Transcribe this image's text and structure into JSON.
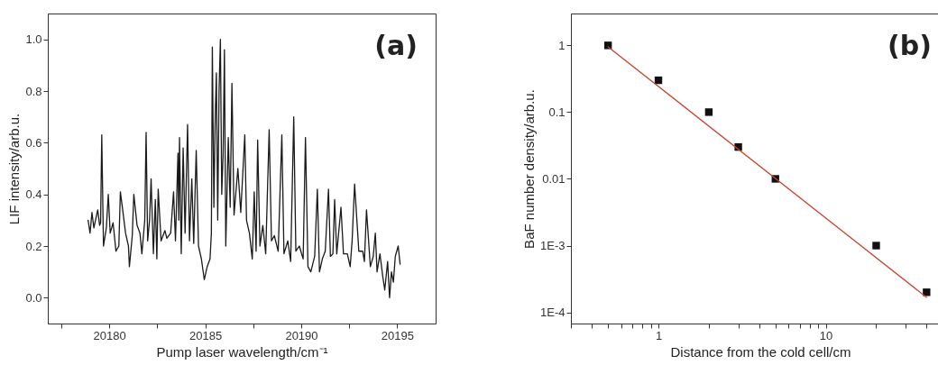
{
  "chart_data": [
    {
      "type": "line",
      "xlabel": "Pump laser wavelength/cm⁻¹",
      "ylabel": "LIF intensity/arb.u.",
      "annotations": [
        "(a)"
      ],
      "color": "#1a1a1a",
      "grid": false,
      "line_style": "solid",
      "xlim": [
        20176.8,
        20197
      ],
      "xticks": [
        {
          "value": 20177.5,
          "label": null
        },
        20180,
        {
          "value": 20182.5,
          "label": null
        },
        20185,
        {
          "value": 20187.5,
          "label": null
        },
        20190,
        {
          "value": 20192.5,
          "label": null
        },
        20195
      ],
      "ylim": [
        -0.1,
        1.1
      ],
      "yticks": [
        {
          "value": 0,
          "label": "0.0"
        },
        0.2,
        0.4,
        0.6,
        0.8,
        {
          "value": 1,
          "label": "1.0"
        }
      ],
      "x": [
        20178.9,
        20179.0,
        20179.1,
        20179.2,
        20179.4,
        20179.5,
        20179.55,
        20179.61,
        20179.7,
        20179.85,
        20179.95,
        20180.05,
        20180.2,
        20180.35,
        20180.5,
        20180.58,
        20180.7,
        20180.85,
        20181.0,
        20181.05,
        20181.2,
        20181.28,
        20181.45,
        20181.6,
        20181.7,
        20181.85,
        20181.92,
        20182.0,
        20182.1,
        20182.18,
        20182.3,
        20182.4,
        20182.48,
        20182.55,
        20182.7,
        20182.9,
        20183.0,
        20183.2,
        20183.35,
        20183.45,
        20183.58,
        20183.62,
        20183.66,
        20183.75,
        20183.85,
        20183.95,
        20184.08,
        20184.18,
        20184.3,
        20184.4,
        20184.53,
        20184.65,
        20184.8,
        20184.95,
        20185.1,
        20185.25,
        20185.32,
        20185.37,
        20185.45,
        20185.52,
        20185.58,
        20185.65,
        20185.72,
        20185.79,
        20185.86,
        20185.93,
        20186.0,
        20186.07,
        20186.2,
        20186.3,
        20186.39,
        20186.5,
        20186.7,
        20186.85,
        20187.06,
        20187.15,
        20187.3,
        20187.45,
        20187.55,
        20187.65,
        20187.73,
        20187.85,
        20188.0,
        20188.15,
        20188.33,
        20188.45,
        20188.6,
        20188.8,
        20188.99,
        20189.1,
        20189.3,
        20189.45,
        20189.61,
        20189.72,
        20189.9,
        20190.1,
        20190.22,
        20190.35,
        20190.5,
        20190.7,
        20190.84,
        20190.95,
        20191.1,
        20191.25,
        20191.42,
        20191.52,
        20191.65,
        20191.74,
        20191.85,
        20192.07,
        20192.2,
        20192.4,
        20192.55,
        20192.65,
        20192.78,
        20193.0,
        20193.2,
        20193.29,
        20193.4,
        20193.6,
        20193.75,
        20193.86,
        20193.95,
        20194.1,
        20194.25,
        20194.35,
        20194.5,
        20194.6,
        20194.7,
        20194.8,
        20194.9,
        20195.05,
        20195.15
      ],
      "values": [
        0.3,
        0.25,
        0.33,
        0.27,
        0.34,
        0.28,
        0.29,
        0.63,
        0.2,
        0.27,
        0.4,
        0.25,
        0.29,
        0.18,
        0.2,
        0.41,
        0.34,
        0.25,
        0.2,
        0.12,
        0.24,
        0.4,
        0.28,
        0.25,
        0.17,
        0.3,
        0.64,
        0.22,
        0.3,
        0.46,
        0.17,
        0.38,
        0.15,
        0.42,
        0.22,
        0.26,
        0.23,
        0.25,
        0.41,
        0.22,
        0.56,
        0.3,
        0.62,
        0.17,
        0.58,
        0.25,
        0.67,
        0.22,
        0.46,
        0.21,
        0.57,
        0.2,
        0.15,
        0.07,
        0.12,
        0.15,
        0.25,
        0.97,
        0.35,
        0.7,
        0.87,
        0.3,
        0.8,
        1.0,
        0.4,
        0.55,
        0.96,
        0.2,
        0.62,
        0.35,
        0.83,
        0.32,
        0.5,
        0.33,
        0.63,
        0.3,
        0.25,
        0.15,
        0.41,
        0.18,
        0.61,
        0.2,
        0.28,
        0.17,
        0.65,
        0.22,
        0.24,
        0.18,
        0.63,
        0.17,
        0.22,
        0.14,
        0.7,
        0.18,
        0.2,
        0.15,
        0.62,
        0.12,
        0.1,
        0.16,
        0.42,
        0.1,
        0.15,
        0.18,
        0.42,
        0.16,
        0.17,
        0.38,
        0.17,
        0.35,
        0.17,
        0.17,
        0.12,
        0.22,
        0.44,
        0.18,
        0.18,
        0.14,
        0.34,
        0.12,
        0.16,
        0.25,
        0.1,
        0.17,
        0.08,
        0.03,
        0.14,
        0.0,
        0.1,
        0.06,
        0.16,
        0.2,
        0.13
      ]
    },
    {
      "type": "scatter",
      "xlabel": "Distance from the cold cell/cm",
      "ylabel": "BaF number density/arb.u.",
      "annotations": [
        "(b)"
      ],
      "grid": false,
      "log": "xy",
      "xlim": [
        0.3,
        55
      ],
      "xticks": [
        {
          "value": 0.3,
          "label": null
        },
        {
          "value": 0.4,
          "label": null
        },
        {
          "value": 0.5,
          "label": null
        },
        {
          "value": 0.6,
          "label": null
        },
        {
          "value": 0.7,
          "label": null
        },
        {
          "value": 0.8,
          "label": null
        },
        {
          "value": 0.9,
          "label": null
        },
        1,
        {
          "value": 2,
          "label": null
        },
        {
          "value": 3,
          "label": null
        },
        {
          "value": 4,
          "label": null
        },
        {
          "value": 5,
          "label": null
        },
        {
          "value": 6,
          "label": null
        },
        {
          "value": 7,
          "label": null
        },
        {
          "value": 8,
          "label": null
        },
        {
          "value": 9,
          "label": null
        },
        10,
        {
          "value": 20,
          "label": null
        },
        {
          "value": 30,
          "label": null
        },
        {
          "value": 40,
          "label": null
        },
        {
          "value": 50,
          "label": null
        }
      ],
      "ylim": [
        6.8e-05,
        3
      ],
      "yticks": [
        {
          "value": 0.0001,
          "label": "1E-4"
        },
        {
          "value": 0.001,
          "label": "1E-3"
        },
        0.01,
        0.1,
        1
      ],
      "series": [
        {
          "marker": "square",
          "color": "#111111",
          "x": [
            0.5,
            1,
            2,
            3,
            5,
            20,
            40
          ],
          "values": [
            1,
            0.3,
            0.1,
            0.03,
            0.01,
            0.001,
            0.0002
          ]
        },
        {
          "type": "line",
          "line_style": "solid",
          "color": "#c8432f",
          "x": [
            0.5,
            40
          ],
          "values": [
            0.95,
            0.000168
          ]
        }
      ]
    }
  ]
}
